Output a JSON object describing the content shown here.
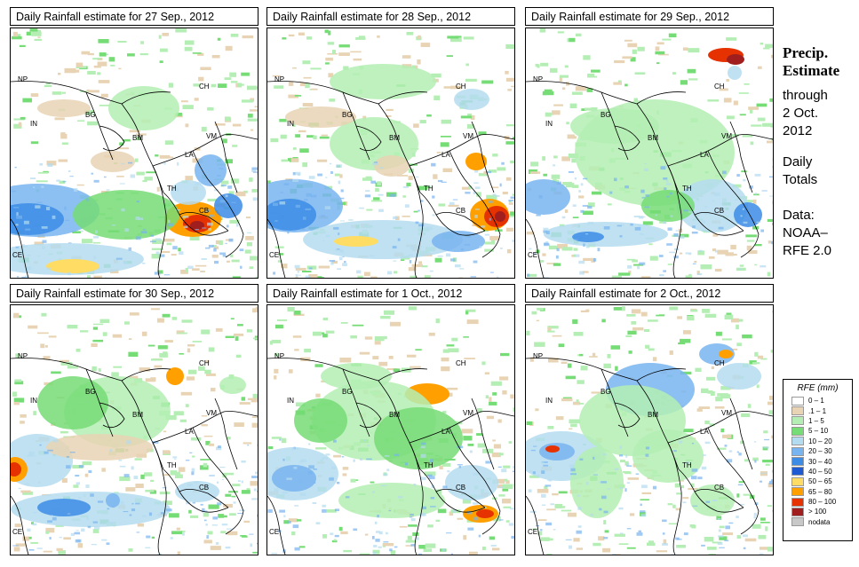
{
  "panels": [
    {
      "title": "Daily Rainfall estimate for  27 Sep., 2012",
      "pattern": "p1"
    },
    {
      "title": "Daily Rainfall estimate for  28 Sep., 2012",
      "pattern": "p2"
    },
    {
      "title": "Daily Rainfall estimate for  29 Sep., 2012",
      "pattern": "p3"
    },
    {
      "title": "Daily Rainfall estimate for  30 Sep., 2012",
      "pattern": "p4"
    },
    {
      "title": "Daily Rainfall estimate for  1 Oct., 2012",
      "pattern": "p5"
    },
    {
      "title": "Daily Rainfall estimate for  2 Oct., 2012",
      "pattern": "p6"
    }
  ],
  "map_labels": [
    "NP",
    "IN",
    "BG",
    "BM",
    "CH",
    "VM",
    "LA",
    "TH",
    "CB",
    "CE"
  ],
  "side": {
    "title_line1": "Precip.",
    "title_line2": "Estimate",
    "through": "through",
    "date_line1": "2 Oct.",
    "date_line2": "2012",
    "daily1": "Daily",
    "daily2": "Totals",
    "data1": "Data:",
    "data2": "NOAA–",
    "data3": "RFE 2.0"
  },
  "legend": {
    "title": "RFE (mm)",
    "items": [
      {
        "label": "0 – 1",
        "color": "#ffffff"
      },
      {
        "label": ".1 – 1",
        "color": "#e8d4b4"
      },
      {
        "label": "1 – 5",
        "color": "#b4eeb4"
      },
      {
        "label": "5 – 10",
        "color": "#76dc76"
      },
      {
        "label": "10 – 20",
        "color": "#b4dcf0"
      },
      {
        "label": "20 – 30",
        "color": "#78b4f0"
      },
      {
        "label": "30 – 40",
        "color": "#3c8ce6"
      },
      {
        "label": "40 – 50",
        "color": "#1e5ad2"
      },
      {
        "label": "50 – 65",
        "color": "#ffdc64"
      },
      {
        "label": "65 – 80",
        "color": "#ffa000"
      },
      {
        "label": "80 – 100",
        "color": "#e63200"
      },
      {
        "label": "> 100",
        "color": "#a01e1e"
      },
      {
        "label": "nodata",
        "color": "#c8c8c8"
      }
    ]
  }
}
